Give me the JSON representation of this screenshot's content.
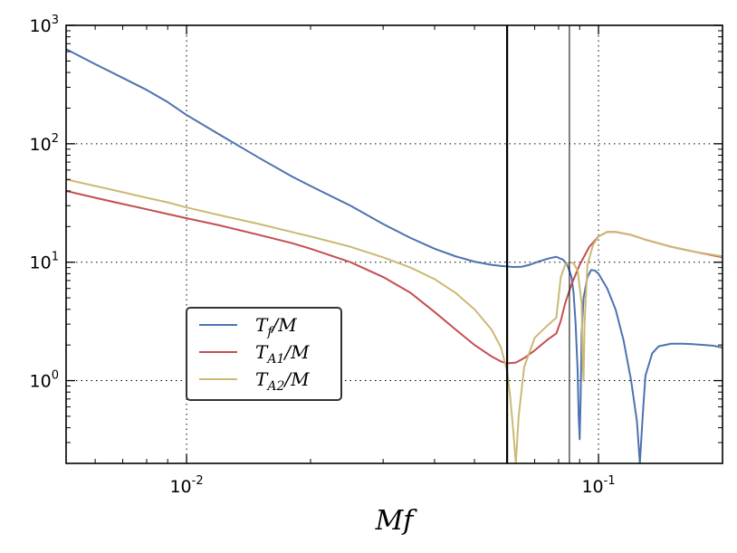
{
  "chart_data": {
    "type": "line",
    "title": "",
    "xlabel": "Mf",
    "ylabel": "",
    "x_scale": "log",
    "y_scale": "log",
    "xlim": [
      0.0051,
      0.2
    ],
    "ylim": [
      0.2,
      1000
    ],
    "grid": true,
    "grid_style": "dotted",
    "legend_position": "lower-left",
    "x_ticks": [
      {
        "base": "10",
        "exp": "-2",
        "value": 0.01
      },
      {
        "base": "10",
        "exp": "-1",
        "value": 0.1
      }
    ],
    "y_ticks": [
      {
        "base": "10",
        "exp": "0",
        "value": 1
      },
      {
        "base": "10",
        "exp": "1",
        "value": 10
      },
      {
        "base": "10",
        "exp": "2",
        "value": 100
      },
      {
        "base": "10",
        "exp": "3",
        "value": 1000
      }
    ],
    "vertical_lines": [
      {
        "x": 0.06,
        "color": "#000000",
        "weight": "thick"
      },
      {
        "x": 0.085,
        "color": "#000000",
        "weight": "thin"
      }
    ],
    "series": [
      {
        "name": "T_f/M",
        "legend": {
          "main": "T",
          "sub": "f",
          "tail": "/M"
        },
        "color": "#4c72b0",
        "points": [
          [
            0.0051,
            630
          ],
          [
            0.006,
            470
          ],
          [
            0.007,
            360
          ],
          [
            0.008,
            285
          ],
          [
            0.009,
            225
          ],
          [
            0.01,
            175
          ],
          [
            0.012,
            120
          ],
          [
            0.015,
            76
          ],
          [
            0.018,
            53
          ],
          [
            0.02,
            44
          ],
          [
            0.025,
            30
          ],
          [
            0.03,
            21
          ],
          [
            0.035,
            16
          ],
          [
            0.04,
            13
          ],
          [
            0.045,
            11.2
          ],
          [
            0.05,
            10.1
          ],
          [
            0.055,
            9.5
          ],
          [
            0.058,
            9.3
          ],
          [
            0.06,
            9.2
          ],
          [
            0.062,
            9.1
          ],
          [
            0.065,
            9.15
          ],
          [
            0.068,
            9.5
          ],
          [
            0.072,
            10.2
          ],
          [
            0.076,
            10.8
          ],
          [
            0.079,
            11.1
          ],
          [
            0.082,
            10.5
          ],
          [
            0.084,
            9.5
          ],
          [
            0.086,
            7.5
          ],
          [
            0.087,
            5.5
          ],
          [
            0.088,
            3.0
          ],
          [
            0.089,
            1.2
          ],
          [
            0.0895,
            0.5
          ],
          [
            0.09,
            0.32
          ],
          [
            0.0905,
            0.7
          ],
          [
            0.091,
            2.5
          ],
          [
            0.092,
            5.0
          ],
          [
            0.094,
            7.5
          ],
          [
            0.096,
            8.6
          ],
          [
            0.098,
            8.5
          ],
          [
            0.1,
            8.0
          ],
          [
            0.105,
            6.0
          ],
          [
            0.11,
            4.0
          ],
          [
            0.115,
            2.2
          ],
          [
            0.12,
            1.0
          ],
          [
            0.124,
            0.45
          ],
          [
            0.126,
            0.2
          ],
          [
            0.128,
            0.5
          ],
          [
            0.13,
            1.1
          ],
          [
            0.135,
            1.7
          ],
          [
            0.14,
            1.95
          ],
          [
            0.15,
            2.05
          ],
          [
            0.16,
            2.05
          ],
          [
            0.17,
            2.03
          ],
          [
            0.18,
            2.0
          ],
          [
            0.19,
            1.97
          ],
          [
            0.2,
            1.9
          ]
        ]
      },
      {
        "name": "T_A1/M",
        "legend": {
          "main": "T",
          "sub": "A1",
          "tail": "/M"
        },
        "color": "#c44e52",
        "points": [
          [
            0.0051,
            40
          ],
          [
            0.006,
            35
          ],
          [
            0.007,
            31
          ],
          [
            0.008,
            28
          ],
          [
            0.009,
            25.5
          ],
          [
            0.01,
            23.5
          ],
          [
            0.012,
            20.5
          ],
          [
            0.015,
            17
          ],
          [
            0.018,
            14.5
          ],
          [
            0.02,
            13
          ],
          [
            0.025,
            10
          ],
          [
            0.03,
            7.5
          ],
          [
            0.035,
            5.5
          ],
          [
            0.04,
            3.8
          ],
          [
            0.045,
            2.7
          ],
          [
            0.05,
            2.0
          ],
          [
            0.055,
            1.6
          ],
          [
            0.058,
            1.45
          ],
          [
            0.06,
            1.4
          ],
          [
            0.063,
            1.42
          ],
          [
            0.066,
            1.55
          ],
          [
            0.07,
            1.8
          ],
          [
            0.075,
            2.2
          ],
          [
            0.079,
            2.5
          ],
          [
            0.081,
            3.2
          ],
          [
            0.083,
            4.5
          ],
          [
            0.086,
            6.5
          ],
          [
            0.09,
            9.5
          ],
          [
            0.095,
            13.5
          ],
          [
            0.1,
            16.5
          ],
          [
            0.105,
            18
          ],
          [
            0.11,
            18
          ],
          [
            0.12,
            17
          ],
          [
            0.13,
            15.5
          ],
          [
            0.15,
            13.5
          ],
          [
            0.17,
            12.3
          ],
          [
            0.2,
            11
          ]
        ]
      },
      {
        "name": "T_A2/M",
        "legend": {
          "main": "T",
          "sub": "A2",
          "tail": "/M"
        },
        "color": "#ccb974",
        "points": [
          [
            0.0051,
            50
          ],
          [
            0.006,
            44
          ],
          [
            0.007,
            39
          ],
          [
            0.008,
            35
          ],
          [
            0.009,
            32
          ],
          [
            0.01,
            29
          ],
          [
            0.012,
            25
          ],
          [
            0.015,
            21
          ],
          [
            0.018,
            18
          ],
          [
            0.02,
            16.5
          ],
          [
            0.025,
            13.5
          ],
          [
            0.03,
            11
          ],
          [
            0.035,
            9
          ],
          [
            0.04,
            7.2
          ],
          [
            0.045,
            5.5
          ],
          [
            0.05,
            4.0
          ],
          [
            0.055,
            2.7
          ],
          [
            0.058,
            1.9
          ],
          [
            0.06,
            1.2
          ],
          [
            0.061,
            0.75
          ],
          [
            0.062,
            0.4
          ],
          [
            0.063,
            0.2
          ],
          [
            0.064,
            0.5
          ],
          [
            0.066,
            1.3
          ],
          [
            0.07,
            2.3
          ],
          [
            0.075,
            2.9
          ],
          [
            0.079,
            3.4
          ],
          [
            0.081,
            7.5
          ],
          [
            0.083,
            9.5
          ],
          [
            0.085,
            10
          ],
          [
            0.087,
            9.8
          ],
          [
            0.089,
            8.5
          ],
          [
            0.091,
            4.5
          ],
          [
            0.0915,
            1.5
          ],
          [
            0.092,
            1.0
          ],
          [
            0.0925,
            3.0
          ],
          [
            0.094,
            9.5
          ],
          [
            0.097,
            14
          ],
          [
            0.1,
            16.5
          ],
          [
            0.105,
            18
          ],
          [
            0.11,
            18
          ],
          [
            0.12,
            17
          ],
          [
            0.13,
            15.5
          ],
          [
            0.15,
            13.5
          ],
          [
            0.17,
            12.3
          ],
          [
            0.2,
            11.2
          ]
        ]
      }
    ]
  }
}
